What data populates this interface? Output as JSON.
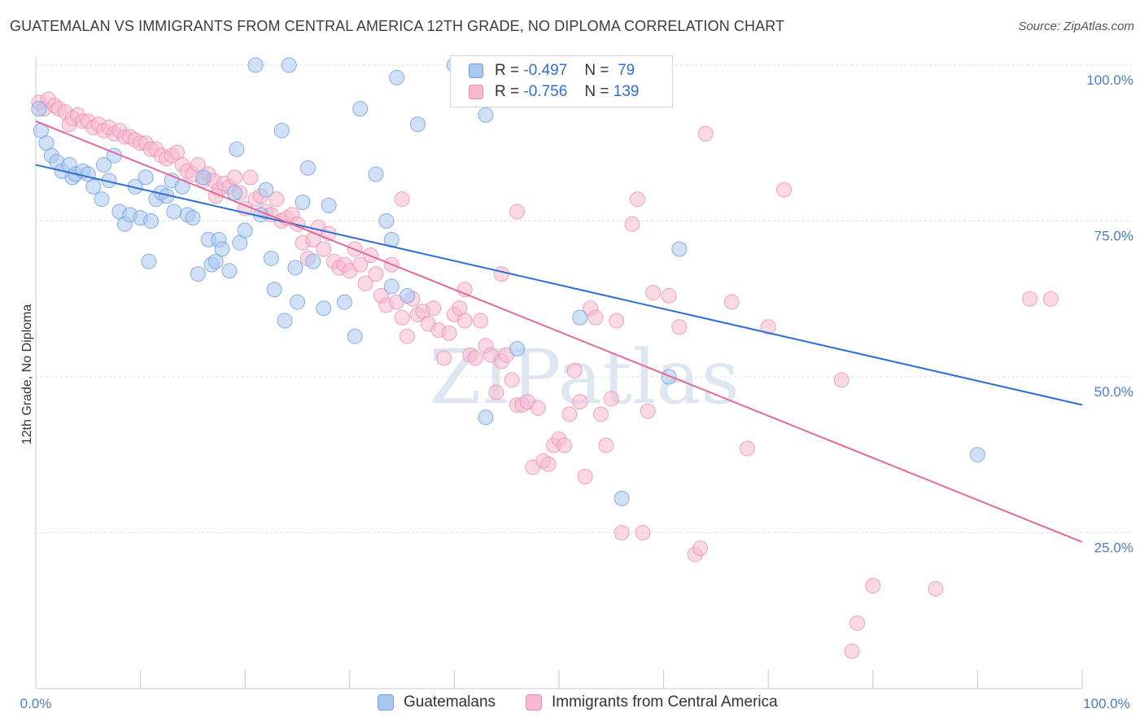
{
  "header": {
    "title": "GUATEMALAN VS IMMIGRANTS FROM CENTRAL AMERICA 12TH GRADE, NO DIPLOMA CORRELATION CHART",
    "source": "Source: ZipAtlas.com"
  },
  "watermark": "ZIPatlas",
  "colors": {
    "blue_fill": "#a9c7ef",
    "blue_stroke": "#6f9fe0",
    "blue_line": "#2d6fd2",
    "pink_fill": "#f6b9cf",
    "pink_stroke": "#ee8fb1",
    "pink_line": "#e4699a",
    "tick_text": "#4a7cc9"
  },
  "legend": {
    "rows": [
      {
        "r_label": "R =",
        "r_value": "-0.497",
        "n_label": "N =",
        "n_value": "79"
      },
      {
        "r_label": "R =",
        "r_value": "-0.756",
        "n_label": "N =",
        "n_value": "139"
      }
    ]
  },
  "bottom_legend": {
    "items": [
      {
        "label": "Guatemalans"
      },
      {
        "label": "Immigrants from Central America"
      }
    ]
  },
  "chart_data": {
    "type": "scatter",
    "title": "GUATEMALAN VS IMMIGRANTS FROM CENTRAL AMERICA 12TH GRADE, NO DIPLOMA CORRELATION CHART",
    "xlabel": "",
    "ylabel": "12th Grade, No Diploma",
    "xlim": [
      0,
      100
    ],
    "ylim": [
      0,
      102
    ],
    "x_tick_labels": [
      "0.0%",
      "100.0%"
    ],
    "y_ticks": [
      25,
      50,
      75,
      100
    ],
    "y_tick_labels": [
      "25.0%",
      "50.0%",
      "75.0%",
      "100.0%"
    ],
    "grid": true,
    "legend_position": "top-center",
    "series": [
      {
        "name": "Guatemalans",
        "r": -0.497,
        "n": 79,
        "trend": {
          "x": [
            0,
            100
          ],
          "y": [
            84.0,
            45.5
          ]
        },
        "points": [
          [
            0.3,
            93.0
          ],
          [
            0.5,
            89.5
          ],
          [
            1.0,
            87.5
          ],
          [
            1.5,
            85.5
          ],
          [
            2.0,
            84.5
          ],
          [
            2.5,
            83.0
          ],
          [
            3.2,
            84.0
          ],
          [
            3.5,
            82.0
          ],
          [
            3.8,
            82.5
          ],
          [
            4.5,
            83.0
          ],
          [
            5.0,
            82.5
          ],
          [
            5.5,
            80.5
          ],
          [
            6.5,
            84.0
          ],
          [
            6.3,
            78.5
          ],
          [
            7.0,
            81.5
          ],
          [
            7.5,
            85.5
          ],
          [
            8.0,
            76.5
          ],
          [
            8.5,
            74.5
          ],
          [
            9.0,
            76.0
          ],
          [
            9.5,
            80.5
          ],
          [
            10.0,
            75.5
          ],
          [
            10.5,
            82.0
          ],
          [
            10.8,
            68.5
          ],
          [
            11.0,
            75.0
          ],
          [
            11.5,
            78.5
          ],
          [
            12.0,
            79.5
          ],
          [
            12.5,
            79.0
          ],
          [
            13.0,
            81.5
          ],
          [
            13.2,
            76.5
          ],
          [
            14.0,
            80.5
          ],
          [
            14.5,
            76.0
          ],
          [
            15.0,
            75.5
          ],
          [
            15.5,
            66.5
          ],
          [
            16.0,
            82.0
          ],
          [
            16.5,
            72.0
          ],
          [
            16.8,
            68.0
          ],
          [
            17.2,
            68.5
          ],
          [
            17.5,
            72.0
          ],
          [
            17.8,
            70.5
          ],
          [
            18.5,
            67.0
          ],
          [
            19.0,
            79.5
          ],
          [
            19.2,
            86.5
          ],
          [
            19.5,
            71.5
          ],
          [
            20.0,
            73.5
          ],
          [
            21.0,
            100.0
          ],
          [
            21.5,
            76.0
          ],
          [
            22.0,
            80.0
          ],
          [
            22.5,
            69.0
          ],
          [
            22.8,
            64.0
          ],
          [
            23.5,
            89.5
          ],
          [
            23.8,
            59.0
          ],
          [
            24.2,
            100.0
          ],
          [
            24.8,
            67.5
          ],
          [
            25.0,
            62.0
          ],
          [
            25.5,
            78.0
          ],
          [
            26.0,
            83.5
          ],
          [
            26.5,
            68.5
          ],
          [
            27.5,
            61.0
          ],
          [
            28.0,
            77.5
          ],
          [
            29.5,
            62.0
          ],
          [
            30.5,
            56.5
          ],
          [
            31.0,
            93.0
          ],
          [
            32.5,
            82.5
          ],
          [
            33.5,
            75.0
          ],
          [
            34.0,
            72.0
          ],
          [
            34.5,
            98.0
          ],
          [
            34.0,
            64.5
          ],
          [
            35.5,
            63.0
          ],
          [
            36.5,
            90.5
          ],
          [
            43.0,
            92.0
          ],
          [
            43.0,
            43.5
          ],
          [
            46.0,
            54.5
          ],
          [
            52.0,
            59.5
          ],
          [
            56.0,
            30.5
          ],
          [
            60.5,
            50.0
          ],
          [
            61.5,
            70.5
          ],
          [
            60.0,
            100.0
          ],
          [
            90.0,
            37.5
          ],
          [
            40.0,
            100.0
          ]
        ]
      },
      {
        "name": "Immigrants from Central America",
        "r": -0.756,
        "n": 139,
        "trend": {
          "x": [
            0,
            100
          ],
          "y": [
            91.0,
            23.5
          ]
        },
        "points": [
          [
            0.3,
            94.0
          ],
          [
            0.8,
            93.0
          ],
          [
            1.2,
            94.5
          ],
          [
            1.8,
            93.5
          ],
          [
            2.2,
            93.0
          ],
          [
            2.8,
            92.5
          ],
          [
            3.2,
            90.5
          ],
          [
            3.5,
            91.5
          ],
          [
            4.0,
            92.0
          ],
          [
            4.5,
            91.0
          ],
          [
            5.0,
            91.0
          ],
          [
            5.5,
            90.0
          ],
          [
            6.0,
            90.5
          ],
          [
            6.5,
            89.5
          ],
          [
            7.0,
            90.0
          ],
          [
            7.5,
            89.0
          ],
          [
            8.0,
            89.5
          ],
          [
            8.5,
            88.5
          ],
          [
            9.0,
            88.5
          ],
          [
            9.5,
            88.0
          ],
          [
            10.0,
            87.5
          ],
          [
            10.5,
            87.5
          ],
          [
            11.0,
            86.5
          ],
          [
            11.5,
            86.5
          ],
          [
            12.0,
            85.5
          ],
          [
            12.5,
            85.0
          ],
          [
            13.0,
            85.5
          ],
          [
            13.5,
            86.0
          ],
          [
            14.0,
            84.0
          ],
          [
            14.5,
            83.0
          ],
          [
            15.0,
            82.5
          ],
          [
            15.5,
            84.0
          ],
          [
            16.0,
            81.5
          ],
          [
            16.5,
            82.5
          ],
          [
            17.0,
            81.5
          ],
          [
            17.5,
            80.0
          ],
          [
            18.0,
            81.0
          ],
          [
            18.5,
            80.5
          ],
          [
            19.0,
            82.0
          ],
          [
            19.5,
            79.5
          ],
          [
            20.0,
            77.0
          ],
          [
            20.5,
            82.0
          ],
          [
            21.0,
            78.5
          ],
          [
            21.5,
            79.0
          ],
          [
            22.0,
            76.5
          ],
          [
            22.5,
            76.0
          ],
          [
            23.0,
            78.5
          ],
          [
            23.5,
            75.0
          ],
          [
            24.0,
            75.5
          ],
          [
            24.5,
            76.0
          ],
          [
            25.0,
            74.5
          ],
          [
            25.5,
            71.5
          ],
          [
            26.0,
            69.0
          ],
          [
            26.5,
            72.0
          ],
          [
            27.0,
            74.0
          ],
          [
            27.5,
            70.5
          ],
          [
            28.0,
            73.0
          ],
          [
            28.5,
            68.5
          ],
          [
            29.0,
            67.5
          ],
          [
            29.5,
            68.0
          ],
          [
            30.0,
            67.0
          ],
          [
            30.5,
            70.5
          ],
          [
            31.0,
            68.0
          ],
          [
            31.5,
            65.0
          ],
          [
            32.0,
            69.5
          ],
          [
            32.5,
            66.5
          ],
          [
            33.0,
            63.0
          ],
          [
            33.5,
            61.5
          ],
          [
            34.0,
            68.0
          ],
          [
            34.5,
            62.0
          ],
          [
            35.0,
            59.5
          ],
          [
            35.5,
            56.5
          ],
          [
            36.0,
            62.5
          ],
          [
            36.5,
            60.0
          ],
          [
            37.0,
            60.5
          ],
          [
            37.5,
            58.5
          ],
          [
            38.0,
            61.0
          ],
          [
            38.5,
            57.5
          ],
          [
            39.0,
            53.0
          ],
          [
            39.5,
            57.0
          ],
          [
            40.0,
            60.0
          ],
          [
            40.5,
            61.0
          ],
          [
            41.0,
            59.0
          ],
          [
            41.5,
            53.5
          ],
          [
            42.0,
            53.0
          ],
          [
            42.5,
            59.0
          ],
          [
            43.0,
            55.0
          ],
          [
            43.5,
            53.5
          ],
          [
            44.0,
            47.5
          ],
          [
            44.5,
            52.5
          ],
          [
            45.0,
            53.5
          ],
          [
            45.5,
            49.5
          ],
          [
            46.0,
            45.5
          ],
          [
            46.5,
            45.5
          ],
          [
            47.0,
            46.0
          ],
          [
            47.5,
            35.5
          ],
          [
            48.0,
            45.0
          ],
          [
            48.5,
            36.5
          ],
          [
            49.0,
            36.0
          ],
          [
            49.5,
            39.0
          ],
          [
            50.0,
            40.0
          ],
          [
            50.5,
            39.0
          ],
          [
            51.0,
            44.0
          ],
          [
            51.5,
            51.0
          ],
          [
            52.0,
            46.0
          ],
          [
            52.5,
            34.0
          ],
          [
            53.0,
            61.0
          ],
          [
            53.5,
            59.5
          ],
          [
            54.0,
            44.0
          ],
          [
            54.5,
            39.0
          ],
          [
            55.0,
            46.5
          ],
          [
            55.5,
            59.0
          ],
          [
            56.0,
            25.0
          ],
          [
            57.0,
            74.5
          ],
          [
            57.5,
            78.5
          ],
          [
            58.0,
            25.0
          ],
          [
            58.5,
            44.5
          ],
          [
            59.0,
            63.5
          ],
          [
            60.5,
            63.0
          ],
          [
            61.5,
            58.0
          ],
          [
            63.0,
            21.5
          ],
          [
            63.5,
            22.5
          ],
          [
            64.0,
            89.0
          ],
          [
            66.5,
            62.0
          ],
          [
            68.0,
            38.5
          ],
          [
            70.0,
            58.0
          ],
          [
            71.5,
            80.0
          ],
          [
            77.0,
            49.5
          ],
          [
            78.5,
            10.5
          ],
          [
            78.0,
            6.0
          ],
          [
            80.0,
            16.5
          ],
          [
            86.0,
            16.0
          ],
          [
            95.0,
            62.5
          ],
          [
            97.0,
            62.5
          ],
          [
            17.2,
            79.0
          ],
          [
            44.5,
            66.5
          ],
          [
            35.0,
            78.5
          ],
          [
            41.0,
            64.0
          ],
          [
            46.0,
            76.5
          ]
        ]
      }
    ]
  }
}
